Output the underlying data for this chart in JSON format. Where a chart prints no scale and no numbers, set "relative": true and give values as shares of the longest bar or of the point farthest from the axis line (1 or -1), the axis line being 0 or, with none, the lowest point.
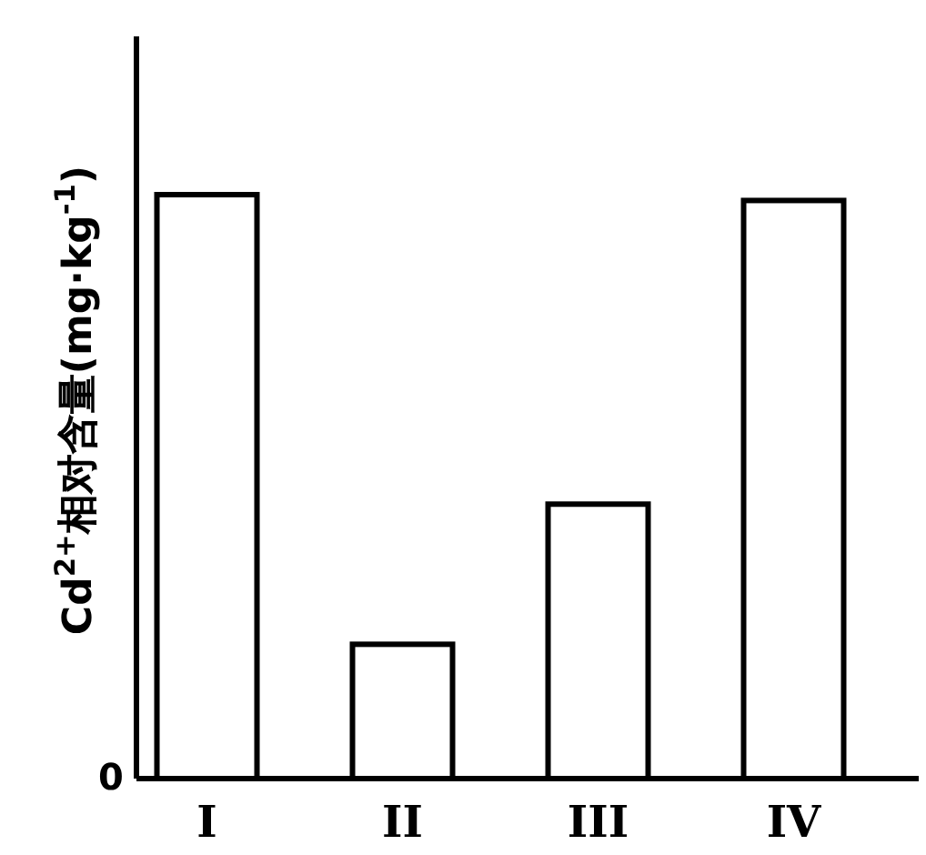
{
  "chart_data": {
    "type": "bar",
    "relative": true,
    "ylabel": "Cd$^{2+}$相对含量(mg·kg$^{-1}$)",
    "categories": [
      "I",
      "II",
      "III",
      "IV"
    ],
    "values": [
      1,
      0.23,
      0.47,
      0.99
    ],
    "color": "#ffffff",
    "annotations": [
      "0"
    ]
  }
}
